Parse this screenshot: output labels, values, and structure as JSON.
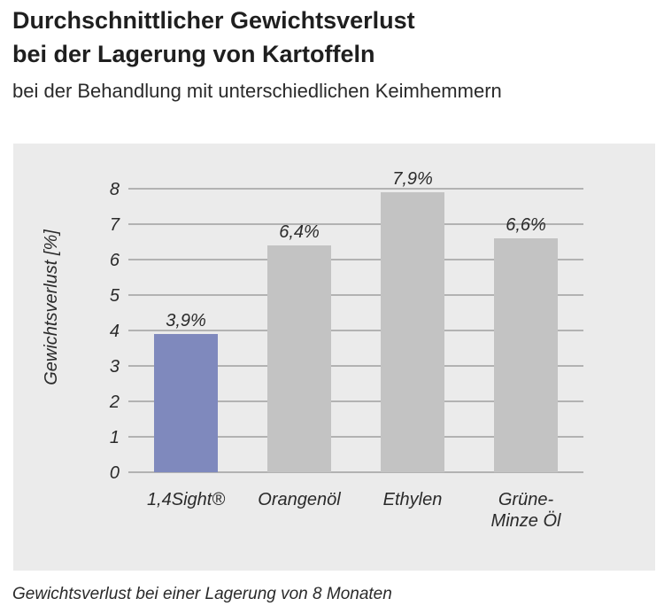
{
  "header": {
    "title_line1": "Durchschnittlicher Gewichtsverlust",
    "title_line2": "bei der Lagerung von Kartoffeln",
    "subtitle": "bei der Behandlung mit unterschiedlichen Keimhemmern"
  },
  "footer": {
    "note": "Gewichtsverlust bei einer Lagerung von 8 Monaten"
  },
  "chart_data": {
    "type": "bar",
    "title": "Durchschnittlicher Gewichtsverlust bei der Lagerung von Kartoffeln",
    "subtitle": "bei der Behandlung mit unterschiedlichen Keimhemmern",
    "xlabel": "",
    "ylabel": "Gewichtsverlust [%]",
    "ylim": [
      0,
      8
    ],
    "yticks": [
      "0",
      "1",
      "2",
      "3",
      "4",
      "5",
      "6",
      "7",
      "8"
    ],
    "grid": true,
    "categories": [
      "1,4Sight®",
      "Orangenöl",
      "Ethylen",
      "Grüne-Minze Öl"
    ],
    "category_label_lines": [
      [
        "1,4Sight®"
      ],
      [
        "Orangenöl"
      ],
      [
        "Ethylen"
      ],
      [
        "Grüne-",
        "Minze Öl"
      ]
    ],
    "values": [
      3.9,
      6.4,
      7.9,
      6.6
    ],
    "data_labels": [
      "3,9%",
      "6,4%",
      "7,9%",
      "6,6%"
    ],
    "colors": {
      "highlight": "#7f89bd",
      "default": "#c3c3c3",
      "grid": "#7a7a7a",
      "panel": "#ebebeb"
    }
  }
}
